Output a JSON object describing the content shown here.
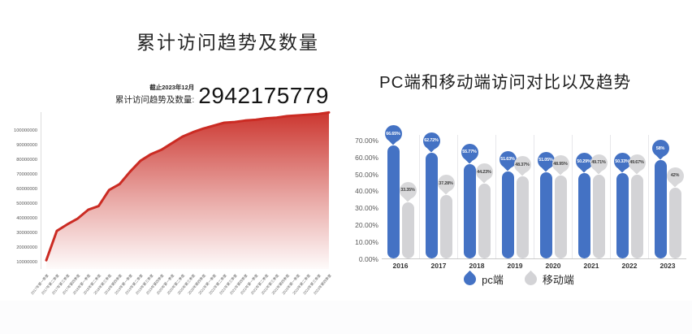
{
  "page": {
    "background": "#ffffff"
  },
  "chart_data": [
    {
      "type": "area",
      "title": "累计访问趋势及数量",
      "annotation": {
        "date_note": "截止2023年12月",
        "label": "累计访问趋势及数量:",
        "value": "2942175779"
      },
      "line_color": "#cb2b23",
      "fill_color": "#ca3029",
      "ylim_millions": [
        5,
        115
      ],
      "y_ticks": [
        "100000000",
        "90000000",
        "80000000",
        "70000000",
        "60000000",
        "50000000",
        "40000000",
        "30000000",
        "20000000",
        "10000000"
      ],
      "x": [
        "2017年第一季度",
        "2017年第二季度",
        "2017年第三季度",
        "2017年第四季度",
        "2018年第一季度",
        "2018年第二季度",
        "2018年第三季度",
        "2018年第四季度",
        "2019年第一季度",
        "2019年第二季度",
        "2019年第三季度",
        "2019年第四季度",
        "2020年第一季度",
        "2020年第二季度",
        "2020年第三季度",
        "2020年第四季度",
        "2021年第一季度",
        "2021年第二季度",
        "2021年第三季度",
        "2021年第四季度",
        "2022年第一季度",
        "2022年第二季度",
        "2022年第三季度",
        "2022年第四季度",
        "2023年第一季度",
        "2023年第二季度",
        "2023年第三季度",
        "2023年第四季度"
      ],
      "values_millions": [
        11,
        31,
        35.5,
        39.5,
        45.5,
        48,
        59,
        63,
        71.5,
        79,
        83.5,
        86.5,
        91,
        95.5,
        98.5,
        101,
        103,
        105,
        105.5,
        106.5,
        107,
        108,
        108.5,
        109.5,
        110,
        110.5,
        111,
        112
      ]
    },
    {
      "type": "bar",
      "title": "PC端和移动端访问对比以及趋势",
      "categories": [
        "2016",
        "2017",
        "2018",
        "2019",
        "2020",
        "2021",
        "2022",
        "2023"
      ],
      "y_ticks": [
        "70.00%",
        "60.00%",
        "50.00%",
        "40.00%",
        "30.00%",
        "20.00%",
        "10.00%",
        "0.00%"
      ],
      "ylim": [
        0,
        70
      ],
      "legend_position": "bottom",
      "series": [
        {
          "name": "pc端",
          "color": "#4472c4",
          "bubble_color": "#4472c4",
          "bubble_text_color": "#ffffff",
          "values": [
            66.65,
            62.72,
            55.77,
            51.63,
            51.05,
            50.29,
            50.33,
            58
          ],
          "labels": [
            "66.65%",
            "62.72%",
            "55.77%",
            "51.63%",
            "51.05%",
            "50.29%",
            "50.33%",
            "58%"
          ]
        },
        {
          "name": "移动端",
          "color": "#d3d3d6",
          "bubble_color": "#d8d8da",
          "bubble_text_color": "#3f3f3f",
          "values": [
            33.35,
            37.28,
            44.23,
            48.37,
            48.95,
            49.71,
            49.67,
            42
          ],
          "labels": [
            "33.35%",
            "37.28%",
            "44.23%",
            "48.37%",
            "48.95%",
            "49.71%",
            "49.67%",
            "42%"
          ]
        }
      ]
    }
  ]
}
